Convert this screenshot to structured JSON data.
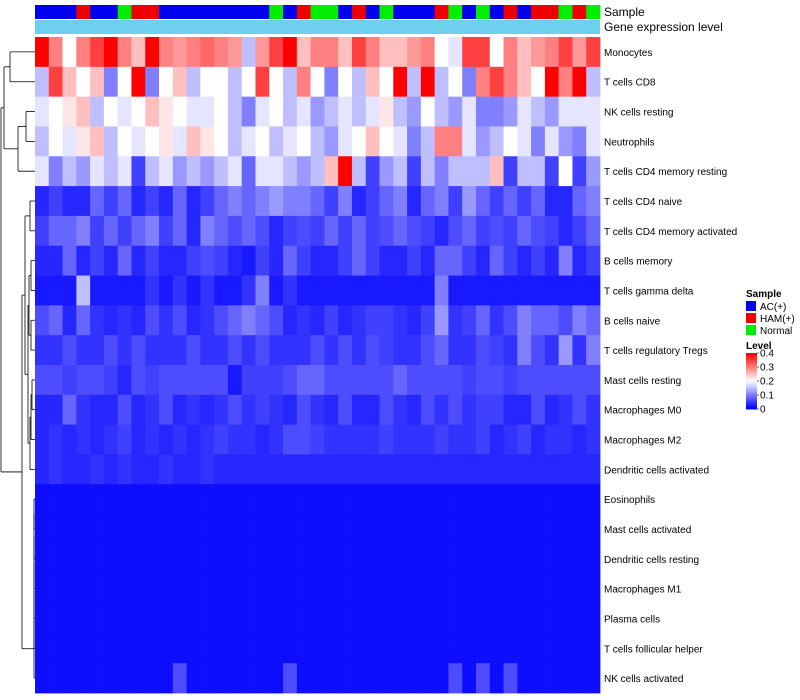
{
  "chart_data": {
    "type": "heatmap",
    "title": "",
    "annotation_labels": [
      "Sample",
      "Gene expression level"
    ],
    "sample_groups": [
      "AC(+)",
      "HAM(+)",
      "Normal"
    ],
    "sample_colors": {
      "AC(+)": "#0000ee",
      "HAM(+)": "#ee0000",
      "Normal": "#00ee00"
    },
    "gene_expression_color": "#6ecfef",
    "columns": [
      "AC(+)",
      "AC(+)",
      "AC(+)",
      "HAM(+)",
      "AC(+)",
      "AC(+)",
      "Normal",
      "HAM(+)",
      "HAM(+)",
      "AC(+)",
      "AC(+)",
      "AC(+)",
      "AC(+)",
      "AC(+)",
      "AC(+)",
      "AC(+)",
      "AC(+)",
      "Normal",
      "AC(+)",
      "HAM(+)",
      "Normal",
      "Normal",
      "AC(+)",
      "HAM(+)",
      "AC(+)",
      "Normal",
      "AC(+)",
      "AC(+)",
      "AC(+)",
      "HAM(+)",
      "Normal",
      "AC(+)",
      "Normal",
      "AC(+)",
      "HAM(+)",
      "AC(+)",
      "HAM(+)",
      "HAM(+)",
      "Normal",
      "HAM(+)",
      "Normal"
    ],
    "rows": [
      "Monocytes",
      "T cells CD8",
      "NK cells resting",
      "Neutrophils",
      "T cells CD4 memory resting",
      "T cells CD4 naive",
      "T cells CD4 memory activated",
      "B cells memory",
      "T cells gamma delta",
      "B cells naive",
      "T cells regulatory  Tregs",
      "Mast cells resting",
      "Macrophages M0",
      "Macrophages M2",
      "Dendritic cells activated",
      "Eosinophils",
      "Mast cells activated",
      "Dendritic cells resting",
      "Macrophages M1",
      "Plasma cells",
      "T cells follicular helper",
      "NK cells activated"
    ],
    "values": [
      [
        0.4,
        0.3,
        0.2,
        0.3,
        0.35,
        0.4,
        0.3,
        0.25,
        0.4,
        0.3,
        0.28,
        0.3,
        0.32,
        0.3,
        0.28,
        0.15,
        0.28,
        0.35,
        0.4,
        0.25,
        0.3,
        0.3,
        0.25,
        0.35,
        0.3,
        0.25,
        0.25,
        0.28,
        0.3,
        0.2,
        0.18,
        0.35,
        0.35,
        0.2,
        0.3,
        0.25,
        0.28,
        0.3,
        0.35,
        0.28,
        0.35
      ],
      [
        0.15,
        0.35,
        0.25,
        0.2,
        0.25,
        0.1,
        0.2,
        0.4,
        0.1,
        0.2,
        0.25,
        0.15,
        0.2,
        0.2,
        0.15,
        0.2,
        0.35,
        0.2,
        0.15,
        0.3,
        0.2,
        0.1,
        0.2,
        0.15,
        0.25,
        0.2,
        0.4,
        0.15,
        0.4,
        0.15,
        0.2,
        0.1,
        0.3,
        0.35,
        0.3,
        0.25,
        0.2,
        0.4,
        0.3,
        0.4,
        0.15
      ],
      [
        0.18,
        0.2,
        0.22,
        0.25,
        0.15,
        0.2,
        0.18,
        0.2,
        0.25,
        0.22,
        0.2,
        0.18,
        0.18,
        0.2,
        0.15,
        0.1,
        0.18,
        0.2,
        0.15,
        0.18,
        0.12,
        0.15,
        0.18,
        0.15,
        0.18,
        0.22,
        0.15,
        0.12,
        0.2,
        0.15,
        0.12,
        0.18,
        0.1,
        0.1,
        0.12,
        0.18,
        0.15,
        0.12,
        0.18,
        0.18,
        0.18
      ],
      [
        0.15,
        0.2,
        0.18,
        0.22,
        0.25,
        0.15,
        0.2,
        0.18,
        0.2,
        0.22,
        0.18,
        0.25,
        0.22,
        0.2,
        0.15,
        0.18,
        0.2,
        0.15,
        0.18,
        0.2,
        0.15,
        0.12,
        0.18,
        0.2,
        0.25,
        0.2,
        0.18,
        0.1,
        0.15,
        0.3,
        0.3,
        0.18,
        0.12,
        0.15,
        0.2,
        0.18,
        0.1,
        0.18,
        0.12,
        0.1,
        0.18
      ],
      [
        0.18,
        0.1,
        0.15,
        0.12,
        0.18,
        0.15,
        0.18,
        0.05,
        0.15,
        0.18,
        0.12,
        0.15,
        0.12,
        0.15,
        0.18,
        0.08,
        0.18,
        0.18,
        0.15,
        0.12,
        0.15,
        0.25,
        0.4,
        0.15,
        0.05,
        0.12,
        0.15,
        0.05,
        0.15,
        0.1,
        0.15,
        0.15,
        0.15,
        0.25,
        0.05,
        0.15,
        0.15,
        0.05,
        0.2,
        0.05,
        0.12
      ],
      [
        0.03,
        0.05,
        0.03,
        0.03,
        0.08,
        0.05,
        0.08,
        0.03,
        0.05,
        0.03,
        0.08,
        0.03,
        0.05,
        0.08,
        0.1,
        0.08,
        0.1,
        0.12,
        0.1,
        0.1,
        0.08,
        0.05,
        0.1,
        0.03,
        0.05,
        0.08,
        0.1,
        0.03,
        0.08,
        0.1,
        0.05,
        0.12,
        0.08,
        0.05,
        0.08,
        0.05,
        0.08,
        0.03,
        0.03,
        0.08,
        0.1
      ],
      [
        0.05,
        0.08,
        0.08,
        0.1,
        0.05,
        0.08,
        0.05,
        0.08,
        0.1,
        0.05,
        0.08,
        0.03,
        0.1,
        0.08,
        0.06,
        0.08,
        0.06,
        0.03,
        0.05,
        0.06,
        0.05,
        0.08,
        0.05,
        0.08,
        0.05,
        0.06,
        0.08,
        0.06,
        0.05,
        0.03,
        0.06,
        0.08,
        0.05,
        0.06,
        0.05,
        0.08,
        0.06,
        0.05,
        0.03,
        0.05,
        0.08
      ],
      [
        0.03,
        0.03,
        0.08,
        0.03,
        0.05,
        0.03,
        0.08,
        0.03,
        0.05,
        0.03,
        0.03,
        0.05,
        0.06,
        0.05,
        0.03,
        0.02,
        0.05,
        0.03,
        0.08,
        0.05,
        0.03,
        0.03,
        0.05,
        0.08,
        0.05,
        0.03,
        0.03,
        0.05,
        0.03,
        0.08,
        0.08,
        0.05,
        0.03,
        0.08,
        0.05,
        0.03,
        0.05,
        0.03,
        0.1,
        0.03,
        0.05
      ],
      [
        0.02,
        0.02,
        0.02,
        0.15,
        0.02,
        0.02,
        0.02,
        0.02,
        0.04,
        0.02,
        0.04,
        0.02,
        0.04,
        0.02,
        0.02,
        0.04,
        0.1,
        0.02,
        0.04,
        0.02,
        0.02,
        0.02,
        0.02,
        0.02,
        0.02,
        0.02,
        0.02,
        0.02,
        0.02,
        0.1,
        0.02,
        0.02,
        0.02,
        0.02,
        0.02,
        0.02,
        0.02,
        0.02,
        0.02,
        0.02,
        0.02
      ],
      [
        0.06,
        0.08,
        0.03,
        0.08,
        0.04,
        0.03,
        0.04,
        0.03,
        0.06,
        0.04,
        0.06,
        0.03,
        0.04,
        0.06,
        0.08,
        0.1,
        0.08,
        0.06,
        0.03,
        0.04,
        0.03,
        0.05,
        0.03,
        0.04,
        0.05,
        0.05,
        0.04,
        0.03,
        0.05,
        0.12,
        0.04,
        0.05,
        0.08,
        0.04,
        0.06,
        0.1,
        0.08,
        0.08,
        0.06,
        0.1,
        0.08
      ],
      [
        0.04,
        0.04,
        0.06,
        0.04,
        0.04,
        0.06,
        0.04,
        0.06,
        0.04,
        0.04,
        0.04,
        0.06,
        0.04,
        0.04,
        0.06,
        0.04,
        0.06,
        0.04,
        0.04,
        0.04,
        0.06,
        0.04,
        0.06,
        0.04,
        0.06,
        0.05,
        0.04,
        0.04,
        0.06,
        0.08,
        0.04,
        0.04,
        0.06,
        0.05,
        0.04,
        0.1,
        0.06,
        0.04,
        0.12,
        0.04,
        0.1
      ],
      [
        0.06,
        0.06,
        0.05,
        0.06,
        0.06,
        0.05,
        0.03,
        0.06,
        0.05,
        0.06,
        0.06,
        0.06,
        0.06,
        0.06,
        0.02,
        0.05,
        0.05,
        0.05,
        0.06,
        0.08,
        0.08,
        0.06,
        0.06,
        0.06,
        0.06,
        0.06,
        0.08,
        0.06,
        0.06,
        0.06,
        0.06,
        0.05,
        0.06,
        0.06,
        0.05,
        0.06,
        0.06,
        0.06,
        0.06,
        0.06,
        0.06
      ],
      [
        0.03,
        0.03,
        0.08,
        0.04,
        0.03,
        0.03,
        0.06,
        0.03,
        0.04,
        0.06,
        0.03,
        0.04,
        0.03,
        0.04,
        0.06,
        0.04,
        0.05,
        0.04,
        0.03,
        0.06,
        0.04,
        0.03,
        0.06,
        0.03,
        0.03,
        0.06,
        0.04,
        0.03,
        0.06,
        0.04,
        0.06,
        0.04,
        0.05,
        0.05,
        0.03,
        0.03,
        0.06,
        0.03,
        0.04,
        0.06,
        0.04
      ],
      [
        0.03,
        0.04,
        0.03,
        0.04,
        0.03,
        0.04,
        0.05,
        0.03,
        0.04,
        0.03,
        0.04,
        0.03,
        0.04,
        0.05,
        0.04,
        0.04,
        0.03,
        0.04,
        0.06,
        0.06,
        0.05,
        0.04,
        0.04,
        0.04,
        0.04,
        0.05,
        0.04,
        0.04,
        0.04,
        0.05,
        0.04,
        0.04,
        0.05,
        0.03,
        0.04,
        0.05,
        0.03,
        0.04,
        0.04,
        0.03,
        0.04
      ],
      [
        0.03,
        0.04,
        0.03,
        0.03,
        0.04,
        0.03,
        0.04,
        0.03,
        0.03,
        0.04,
        0.03,
        0.03,
        0.04,
        0.03,
        0.03,
        0.03,
        0.03,
        0.03,
        0.03,
        0.03,
        0.03,
        0.03,
        0.03,
        0.03,
        0.03,
        0.03,
        0.03,
        0.03,
        0.03,
        0.03,
        0.03,
        0.03,
        0.03,
        0.03,
        0.03,
        0.03,
        0.03,
        0.03,
        0.03,
        0.03,
        0.03
      ],
      [
        0.01,
        0.01,
        0.01,
        0.01,
        0.01,
        0.01,
        0.01,
        0.01,
        0.01,
        0.01,
        0.01,
        0.01,
        0.01,
        0.01,
        0.01,
        0.01,
        0.01,
        0.01,
        0.01,
        0.01,
        0.01,
        0.01,
        0.01,
        0.01,
        0.01,
        0.01,
        0.01,
        0.01,
        0.01,
        0.01,
        0.01,
        0.01,
        0.01,
        0.01,
        0.01,
        0.01,
        0.01,
        0.01,
        0.01,
        0.01,
        0.01
      ],
      [
        0.01,
        0.01,
        0.01,
        0.01,
        0.01,
        0.01,
        0.01,
        0.01,
        0.01,
        0.01,
        0.01,
        0.01,
        0.01,
        0.01,
        0.01,
        0.01,
        0.01,
        0.01,
        0.01,
        0.01,
        0.01,
        0.01,
        0.01,
        0.01,
        0.01,
        0.01,
        0.01,
        0.01,
        0.01,
        0.01,
        0.01,
        0.01,
        0.01,
        0.01,
        0.01,
        0.01,
        0.01,
        0.01,
        0.01,
        0.01,
        0.01
      ],
      [
        0.01,
        0.01,
        0.01,
        0.01,
        0.01,
        0.01,
        0.01,
        0.01,
        0.01,
        0.01,
        0.01,
        0.01,
        0.01,
        0.01,
        0.01,
        0.01,
        0.01,
        0.01,
        0.01,
        0.01,
        0.01,
        0.01,
        0.01,
        0.01,
        0.01,
        0.01,
        0.01,
        0.01,
        0.01,
        0.01,
        0.01,
        0.01,
        0.01,
        0.01,
        0.01,
        0.01,
        0.01,
        0.01,
        0.01,
        0.01,
        0.01
      ],
      [
        0.01,
        0.01,
        0.01,
        0.01,
        0.01,
        0.01,
        0.01,
        0.01,
        0.01,
        0.01,
        0.01,
        0.01,
        0.01,
        0.01,
        0.01,
        0.01,
        0.01,
        0.01,
        0.01,
        0.01,
        0.01,
        0.01,
        0.01,
        0.01,
        0.01,
        0.01,
        0.01,
        0.01,
        0.01,
        0.01,
        0.01,
        0.01,
        0.01,
        0.01,
        0.01,
        0.01,
        0.01,
        0.01,
        0.01,
        0.01,
        0.01
      ],
      [
        0.01,
        0.01,
        0.01,
        0.01,
        0.01,
        0.01,
        0.01,
        0.01,
        0.01,
        0.01,
        0.01,
        0.01,
        0.01,
        0.01,
        0.01,
        0.01,
        0.01,
        0.01,
        0.01,
        0.01,
        0.01,
        0.01,
        0.01,
        0.01,
        0.01,
        0.01,
        0.01,
        0.01,
        0.01,
        0.01,
        0.01,
        0.01,
        0.01,
        0.01,
        0.01,
        0.01,
        0.01,
        0.01,
        0.01,
        0.01,
        0.01
      ],
      [
        0.01,
        0.01,
        0.01,
        0.01,
        0.01,
        0.01,
        0.01,
        0.01,
        0.01,
        0.01,
        0.01,
        0.01,
        0.01,
        0.01,
        0.01,
        0.01,
        0.01,
        0.01,
        0.01,
        0.01,
        0.01,
        0.01,
        0.01,
        0.01,
        0.01,
        0.01,
        0.01,
        0.01,
        0.01,
        0.01,
        0.01,
        0.01,
        0.01,
        0.01,
        0.01,
        0.01,
        0.01,
        0.01,
        0.01,
        0.01,
        0.01
      ],
      [
        0.01,
        0.01,
        0.01,
        0.01,
        0.01,
        0.01,
        0.01,
        0.01,
        0.01,
        0.01,
        0.06,
        0.01,
        0.01,
        0.01,
        0.01,
        0.01,
        0.01,
        0.01,
        0.06,
        0.01,
        0.01,
        0.01,
        0.01,
        0.01,
        0.01,
        0.01,
        0.01,
        0.01,
        0.01,
        0.01,
        0.06,
        0.01,
        0.06,
        0.01,
        0.06,
        0.01,
        0.01,
        0.01,
        0.01,
        0.01,
        0.01
      ]
    ],
    "color_scale": {
      "min": 0,
      "mid": 0.2,
      "max": 0.4,
      "low_color": "#0000ff",
      "mid_color": "#ffffff",
      "high_color": "#ff0000"
    },
    "legend": {
      "sample_title": "Sample",
      "level_title": "Level",
      "level_ticks": [
        "0.4",
        "0.3",
        "0.2",
        "0.1",
        "0"
      ],
      "level_tick_values": [
        0.4,
        0.3,
        0.2,
        0.1,
        0
      ],
      "placement": "right"
    }
  }
}
